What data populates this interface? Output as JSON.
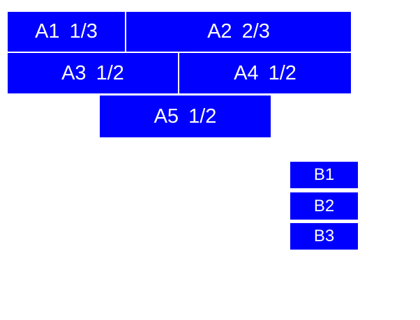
{
  "colors": {
    "box_fill": "#0000ff",
    "box_text": "#ffffff",
    "page_background": "#ffffff"
  },
  "group_a": {
    "a1": {
      "label": "A1 1/3"
    },
    "a2": {
      "label": "A2 2/3"
    },
    "a3": {
      "label": "A3 1/2"
    },
    "a4": {
      "label": "A4 1/2"
    },
    "a5": {
      "label": "A5 1/2"
    }
  },
  "group_b": {
    "b1": {
      "label": "B1"
    },
    "b2": {
      "label": "B2"
    },
    "b3": {
      "label": "B3"
    }
  }
}
